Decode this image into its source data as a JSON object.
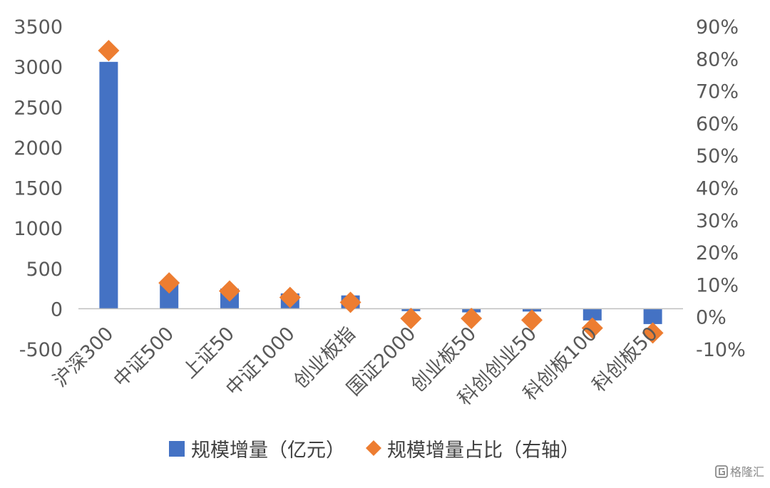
{
  "chart_data": {
    "type": "bar",
    "categories": [
      "沪深300",
      "中证500",
      "上证50",
      "中证1000",
      "创业板指",
      "国证2000",
      "创业板50",
      "科创创业50",
      "科创板100",
      "科创板50"
    ],
    "series": [
      {
        "name": "规模增量（亿元）",
        "type": "bar",
        "axis": "left",
        "color": "#4472C4",
        "values": [
          3060,
          320,
          250,
          190,
          165,
          -30,
          -45,
          -35,
          -145,
          -190
        ]
      },
      {
        "name": "规模增量占比（右轴）",
        "type": "scatter",
        "marker": "diamond",
        "axis": "right",
        "color": "#ED7D31",
        "values": [
          0.825,
          0.105,
          0.08,
          0.06,
          0.045,
          -0.005,
          -0.005,
          -0.01,
          -0.035,
          -0.05
        ]
      }
    ],
    "y_left": {
      "ylim": [
        -500,
        3500
      ],
      "ticks": [
        -500,
        0,
        500,
        1000,
        1500,
        2000,
        2500,
        3000,
        3500
      ],
      "tick_labels": [
        "-500",
        "0",
        "500",
        "1000",
        "1500",
        "2000",
        "2500",
        "3000",
        "3500"
      ]
    },
    "y_right": {
      "ylim": [
        -0.1,
        0.9
      ],
      "ticks": [
        -0.1,
        0,
        0.1,
        0.2,
        0.3,
        0.4,
        0.5,
        0.6,
        0.7,
        0.8,
        0.9
      ],
      "tick_labels": [
        "-10%",
        "0%",
        "10%",
        "20%",
        "30%",
        "40%",
        "50%",
        "60%",
        "70%",
        "80%",
        "90%"
      ]
    },
    "grid": false,
    "legend_position": "bottom"
  },
  "watermark": {
    "icon": "gelonghui-logo-icon",
    "text": "格隆汇"
  }
}
